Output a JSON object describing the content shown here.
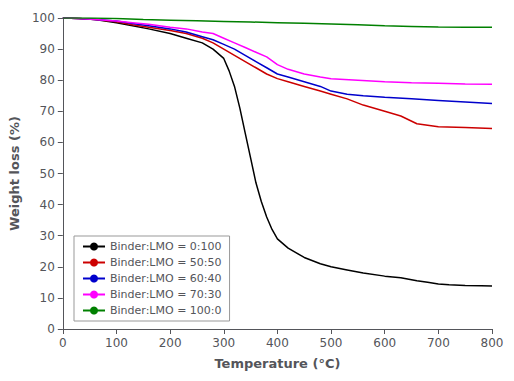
{
  "chart_data": {
    "type": "line",
    "xlabel": "Temperature (°C)",
    "ylabel": "Weight loss (%)",
    "xlim": [
      0,
      800
    ],
    "ylim": [
      0,
      100
    ],
    "xticks": [
      0,
      100,
      200,
      300,
      400,
      500,
      600,
      700,
      800
    ],
    "yticks": [
      0,
      10,
      20,
      30,
      40,
      50,
      60,
      70,
      80,
      90,
      100
    ],
    "grid": false,
    "legend": "lower left",
    "series": [
      {
        "name": "Binder:LMO = 0:100",
        "color": "#000000",
        "x": [
          0,
          30,
          60,
          100,
          130,
          160,
          200,
          230,
          260,
          280,
          300,
          310,
          320,
          330,
          340,
          350,
          360,
          370,
          380,
          390,
          400,
          420,
          450,
          480,
          500,
          530,
          560,
          600,
          630,
          660,
          680,
          700,
          720,
          750,
          780,
          800
        ],
        "values": [
          100,
          99.8,
          99.5,
          98.5,
          97.5,
          96.5,
          95,
          93.5,
          92,
          90,
          87,
          83,
          78,
          71,
          63,
          55,
          47,
          41,
          36,
          32,
          29,
          26,
          23,
          21,
          20,
          19,
          18,
          17,
          16.5,
          15.5,
          15,
          14.5,
          14.2,
          14.0,
          13.9,
          13.8
        ]
      },
      {
        "name": "Binder:LMO = 50:50",
        "color": "#cc0000",
        "x": [
          0,
          30,
          60,
          100,
          130,
          160,
          200,
          230,
          260,
          280,
          300,
          320,
          340,
          360,
          380,
          400,
          420,
          450,
          480,
          500,
          530,
          560,
          600,
          630,
          660,
          680,
          700,
          750,
          800
        ],
        "values": [
          100,
          99.8,
          99.5,
          98.8,
          97.8,
          97,
          96,
          95,
          93.5,
          92,
          90,
          88,
          86,
          84,
          82,
          80.5,
          79.5,
          78,
          76.5,
          75.5,
          74,
          72,
          70,
          68.5,
          66,
          65.5,
          65,
          64.8,
          64.5
        ]
      },
      {
        "name": "Binder:LMO = 60:40",
        "color": "#0000cc",
        "x": [
          0,
          30,
          60,
          100,
          130,
          160,
          200,
          230,
          260,
          280,
          300,
          320,
          340,
          360,
          380,
          400,
          420,
          450,
          480,
          500,
          530,
          560,
          600,
          650,
          700,
          750,
          800
        ],
        "values": [
          100,
          99.8,
          99.5,
          99,
          98.2,
          97.5,
          96.5,
          95.5,
          94,
          93,
          91.5,
          90,
          88,
          86,
          84,
          82,
          81,
          79.5,
          78,
          76.5,
          75.5,
          75,
          74.5,
          74,
          73.5,
          73,
          72.5
        ]
      },
      {
        "name": "Binder:LMO = 70:30",
        "color": "#ff00ff",
        "x": [
          0,
          30,
          60,
          100,
          130,
          160,
          200,
          230,
          260,
          280,
          300,
          320,
          340,
          360,
          380,
          400,
          420,
          450,
          480,
          500,
          550,
          600,
          650,
          700,
          750,
          800
        ],
        "values": [
          100,
          99.8,
          99.5,
          99,
          98.5,
          98,
          97,
          96.5,
          95.5,
          95,
          93.5,
          92,
          90.5,
          89,
          87.5,
          85,
          83.5,
          82,
          81,
          80.5,
          80,
          79.5,
          79.2,
          79,
          78.8,
          78.7
        ]
      },
      {
        "name": "Binder:LMO = 100:0",
        "color": "#008000",
        "x": [
          0,
          50,
          100,
          150,
          200,
          250,
          300,
          350,
          400,
          450,
          500,
          550,
          600,
          650,
          700,
          750,
          800
        ],
        "values": [
          100,
          100,
          99.8,
          99.5,
          99.3,
          99.1,
          98.9,
          98.7,
          98.5,
          98.3,
          98.1,
          97.8,
          97.5,
          97.3,
          97.1,
          97.0,
          97.0
        ]
      }
    ]
  }
}
